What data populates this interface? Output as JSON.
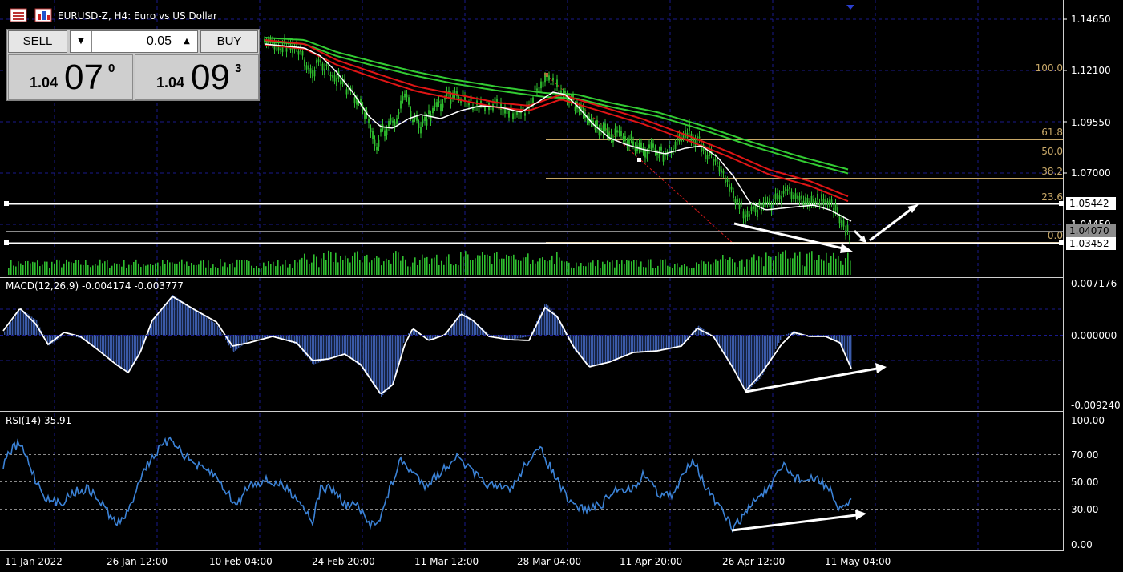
{
  "window": {
    "title": "EURUSD-Z, H4:  Euro vs US Dollar"
  },
  "trade_panel": {
    "sell_label": "SELL",
    "buy_label": "BUY",
    "lot_value": "0.05",
    "sell_price": {
      "small": "1.04",
      "big": "07",
      "sup": "0"
    },
    "buy_price": {
      "small": "1.04",
      "big": "09",
      "sup": "3"
    }
  },
  "price_axis": {
    "ticks": [
      "1.14650",
      "1.12100",
      "1.09550",
      "1.07000",
      "1.04450"
    ],
    "tags": [
      "1.05442",
      "1.04070",
      "1.03452"
    ]
  },
  "fibonacci": {
    "levels": [
      "100.0",
      "61.8",
      "50.0",
      "38.2",
      "23.6",
      "0.0"
    ]
  },
  "macd": {
    "label": "MACD(12,26,9) -0.004174 -0.003777",
    "ticks": [
      "0.007176",
      "0.000000",
      "-0.009240"
    ]
  },
  "rsi": {
    "label": "RSI(14) 35.91",
    "ticks": [
      "100.00",
      "70.00",
      "50.00",
      "30.00",
      "0.00"
    ]
  },
  "time_axis": {
    "labels": [
      "11 Jan 2022",
      "26 Jan 12:00",
      "10 Feb 04:00",
      "24 Feb 20:00",
      "11 Mar 12:00",
      "28 Mar 04:00",
      "11 Apr 20:00",
      "26 Apr 12:00",
      "11 May 04:00"
    ]
  },
  "colors": {
    "background": "#000000",
    "grid": "#1a1a8c",
    "candle": "#2fbf2f",
    "ma_green": "#33cc33",
    "ma_red": "#e01515",
    "ma_white": "#ffffff",
    "macd_hist": "#3a5aa8",
    "rsi_line": "#3b82d6",
    "fibo": "#c8a868"
  },
  "icons": [
    "chart-menu-icon",
    "one-click-trading-icon"
  ]
}
